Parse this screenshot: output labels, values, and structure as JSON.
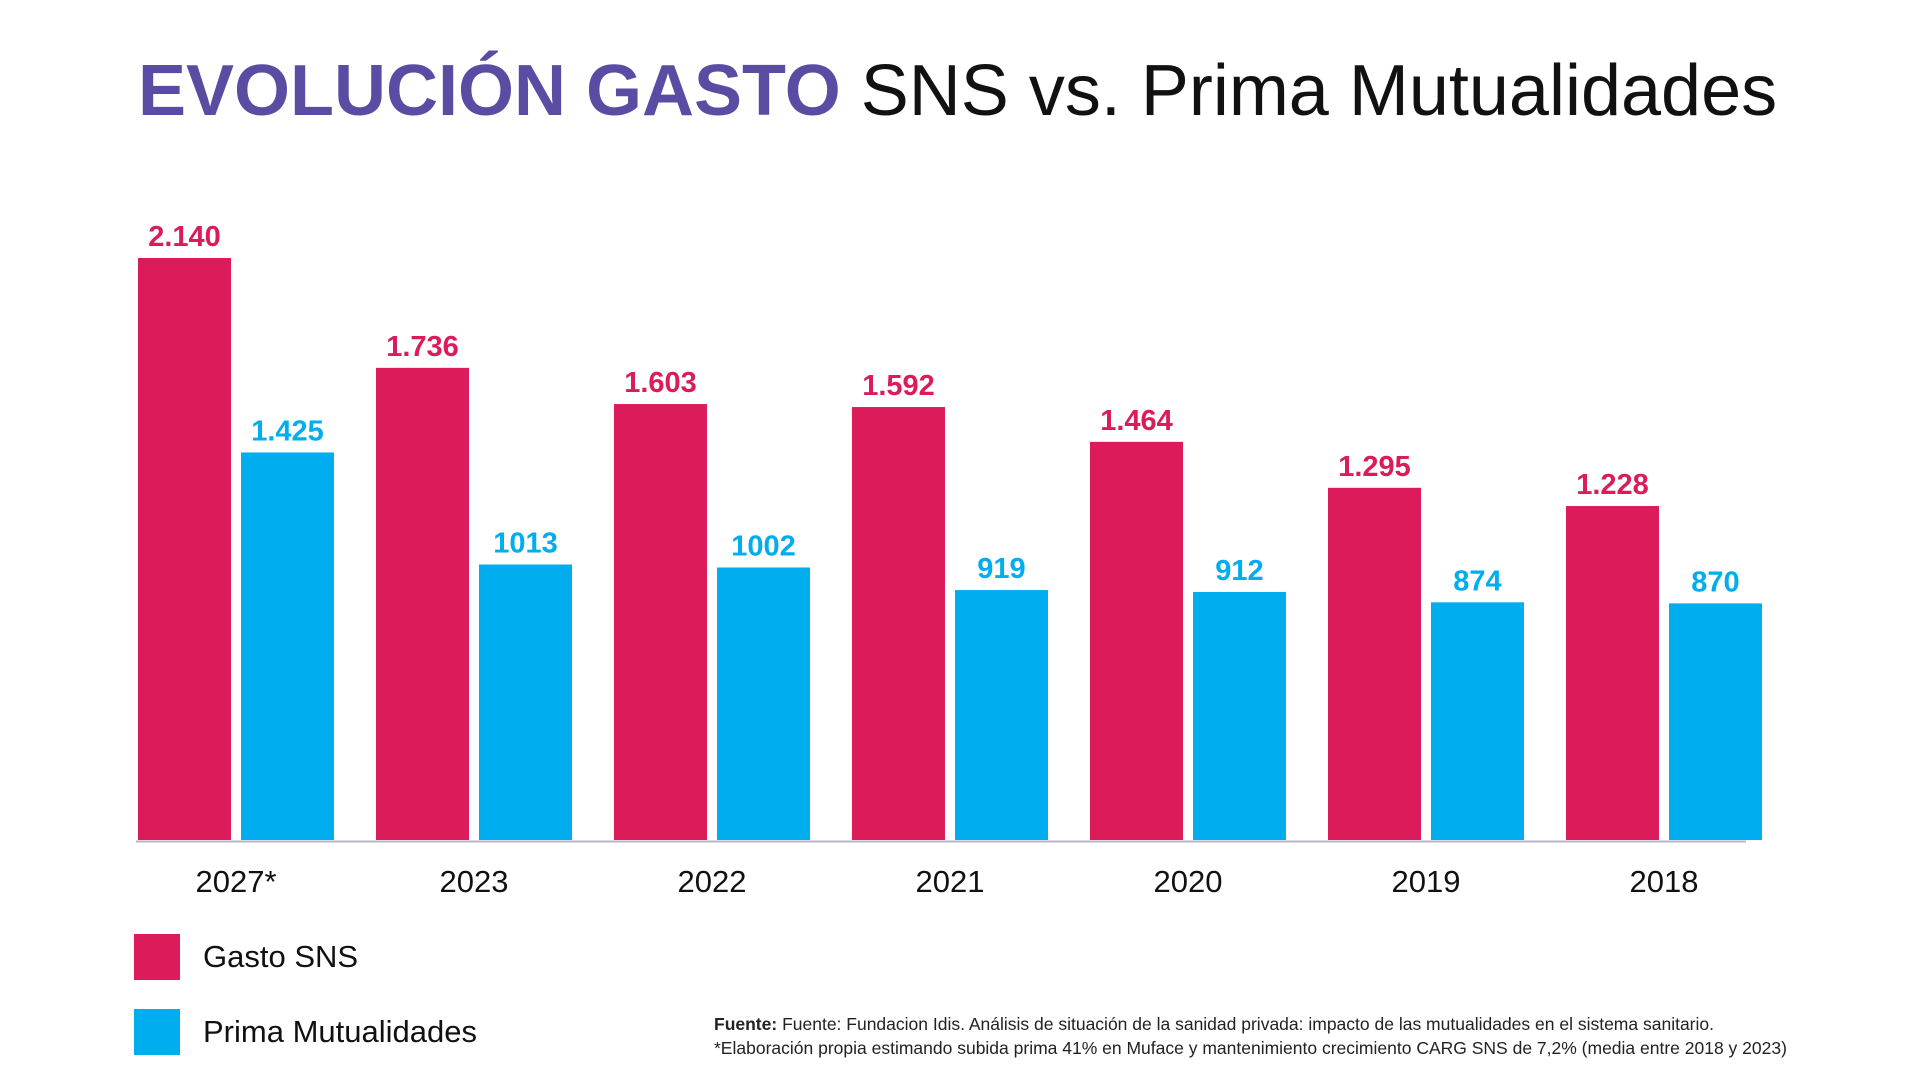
{
  "title": {
    "bold": "EVOLUCIÓN GASTO",
    "rest": "SNS vs. Prima Mutualidades"
  },
  "colors": {
    "title": "#5a4ca3",
    "sns": "#dc1c5a",
    "prima": "#00adee",
    "axis": "#b7b7c4"
  },
  "chart_data": {
    "type": "bar",
    "categories": [
      "2027*",
      "2023",
      "2022",
      "2021",
      "2020",
      "2019",
      "2018"
    ],
    "series": [
      {
        "name": "Gasto SNS",
        "values": [
          2140,
          1736,
          1603,
          1592,
          1464,
          1295,
          1228
        ],
        "labels": [
          "2.140",
          "1.736",
          "1.603",
          "1.592",
          "1.464",
          "1.295",
          "1.228"
        ]
      },
      {
        "name": "Prima Mutualidades",
        "values": [
          1425,
          1013,
          1002,
          919,
          912,
          874,
          870
        ],
        "labels": [
          "1.425",
          "1013",
          "1002",
          "919",
          "912",
          "874",
          "870"
        ]
      }
    ],
    "title": "EVOLUCIÓN GASTO SNS vs. Prima Mutualidades",
    "legend_position": "bottom-left",
    "grid": false
  },
  "legend": {
    "items": [
      "Gasto SNS",
      "Prima Mutualidades"
    ]
  },
  "footnote": {
    "label": "Fuente:",
    "source": " Fuente: Fundacion Idis. Análisis de situación de la sanidad privada: impacto de las mutualidades en el sistema sanitario.",
    "note": "*Elaboración propia estimando subida prima 41% en Muface y mantenimiento crecimiento CARG SNS de 7,2% (media entre 2018 y 2023)"
  }
}
